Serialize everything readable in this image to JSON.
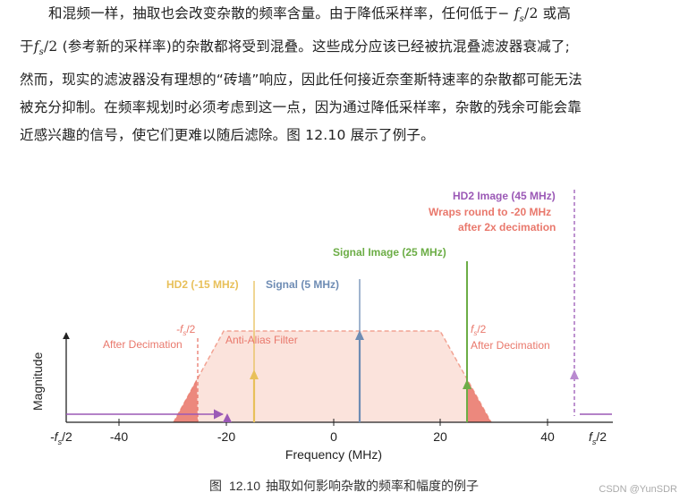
{
  "body_text": {
    "line1_a": "和混频一样，抽取也会改变杂散的频率含量。由于降低采样率，任何低于−",
    "line1_b": "或高",
    "line2_a": "于",
    "line2_b": "(参考新的采样率)的杂散都将受到混叠。这些成分应该已经被抗混叠滤波器衰减了;",
    "line3": "然而，现实的滤波器没有理想的“砖墙”响应，因此任何接近奈奎斯特速率的杂散都可能无法",
    "line4": "被充分抑制。在频率规划时必须考虑到这一点，因为通过降低采样率，杂散的残余可能会靠",
    "line5": "近感兴趣的信号，使它们更难以随后滤除。图 12.10 展示了例子。",
    "math_f": "f",
    "math_sub": "s",
    "math_half": "/2"
  },
  "figure": {
    "y_axis_label": "Magnitude",
    "x_axis_label": "Frequency (MHz)",
    "ticks": [
      "-40",
      "-20",
      "0",
      "20",
      "40"
    ],
    "neg_fs2_tick_main": "-f",
    "neg_fs2_tick_sub": "s",
    "neg_fs2_tick_tail": "/2",
    "pos_fs2_tick_main": "f",
    "pos_fs2_tick_sub": "s",
    "pos_fs2_tick_tail": "/2",
    "filter_label": "Anti-Alias Filter",
    "neg_fs2_label_main": "-f",
    "neg_fs2_label_sub": "s",
    "neg_fs2_label_tail": "/2",
    "after_decimation_left": "After Decimation",
    "pos_fs2_label_main": "f",
    "pos_fs2_label_sub": "s",
    "pos_fs2_label_tail": "/2",
    "after_decimation_right": "After Decimation",
    "hd2_neg_label": "HD2 (-15 MHz)",
    "signal_label": "Signal (5 MHz)",
    "signal_image_label": "Signal Image (25 MHz)",
    "hd2_image_label": "HD2 Image (45 MHz)",
    "wrap_line1": "Wraps round to -20 MHz",
    "wrap_line2": "after 2x decimation",
    "colors": {
      "hd2": "#e8c05a",
      "signal": "#6e8cb4",
      "signal_image": "#6cad46",
      "hd2_image": "#9b59b6",
      "filter_fill": "#fbe3dc",
      "filter_line": "#f2a393",
      "alias_red": "#e9786c",
      "axis": "#222222"
    }
  },
  "caption": {
    "prefix": "图",
    "number": "12.10",
    "text": "抽取如何影响杂散的频率和幅度的例子"
  },
  "watermark": "CSDN @YunSDR"
}
